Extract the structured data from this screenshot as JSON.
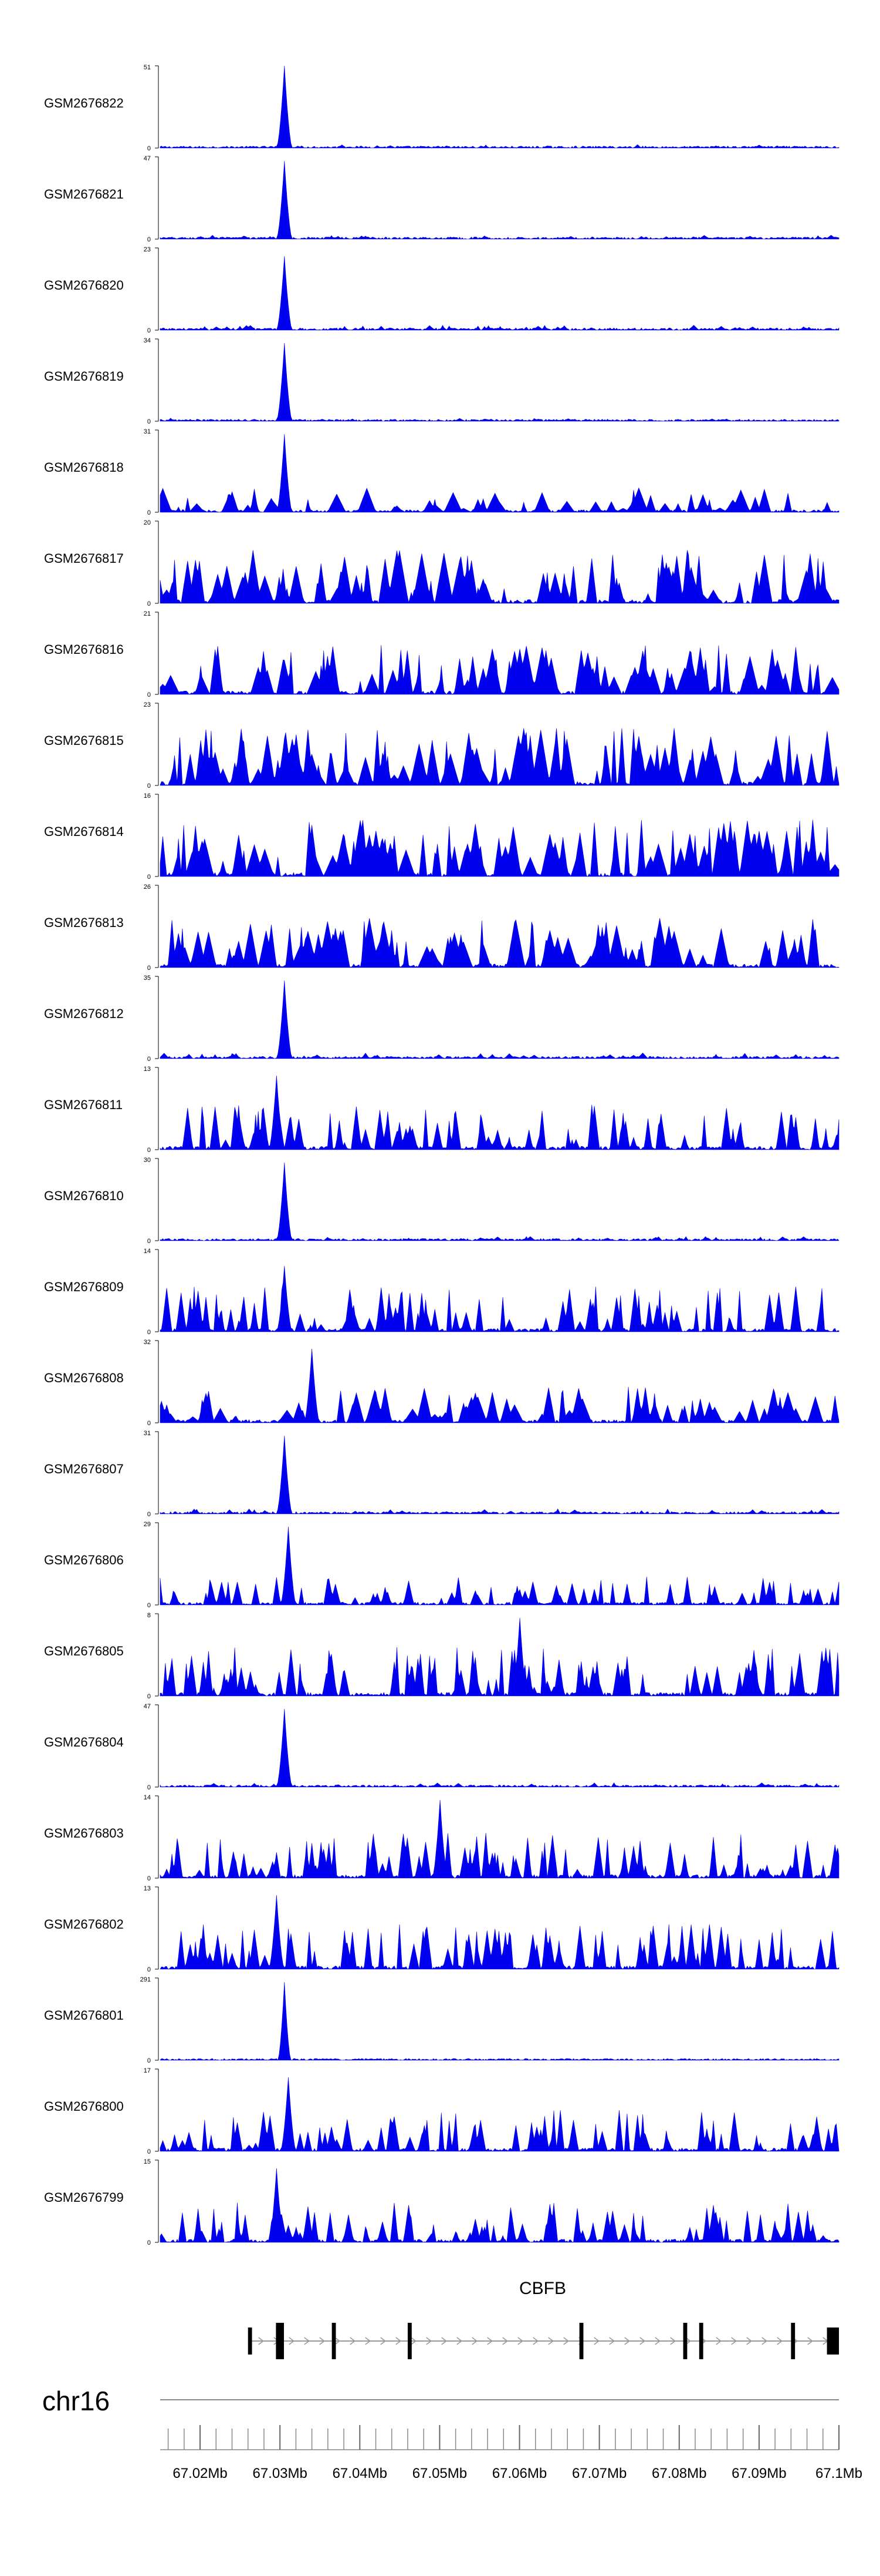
{
  "colors": {
    "track": "#0000ee",
    "axis": "#000000",
    "gene": "#000000",
    "strand": "#999999",
    "ruler": "#888888"
  },
  "chart_data": {
    "type": "area",
    "title": "",
    "genome": "chr16",
    "xrange": [
      67.015,
      67.1
    ],
    "tracks": [
      {
        "name": "GSM2676822",
        "ymax": 51,
        "ymin": 0,
        "peak": 67.0305,
        "peak_height": 1.0,
        "background": 0.12,
        "style": "peak"
      },
      {
        "name": "GSM2676821",
        "ymax": 47,
        "ymin": 0,
        "peak": 67.0305,
        "peak_height": 0.95,
        "background": 0.14,
        "style": "peak"
      },
      {
        "name": "GSM2676820",
        "ymax": 23,
        "ymin": 0,
        "peak": 67.0305,
        "peak_height": 0.9,
        "background": 0.18,
        "style": "peak"
      },
      {
        "name": "GSM2676819",
        "ymax": 34,
        "ymin": 0,
        "peak": 67.0305,
        "peak_height": 0.95,
        "background": 0.12,
        "style": "peak"
      },
      {
        "name": "GSM2676818",
        "ymax": 31,
        "ymin": 0,
        "peak": 67.0305,
        "peak_height": 0.95,
        "background": 0.3,
        "style": "spiky"
      },
      {
        "name": "GSM2676817",
        "ymax": 20,
        "ymin": 0,
        "peak": null,
        "peak_height": 0.0,
        "background": 0.65,
        "style": "spiky"
      },
      {
        "name": "GSM2676816",
        "ymax": 21,
        "ymin": 0,
        "peak": null,
        "peak_height": 0.0,
        "background": 0.6,
        "style": "spiky"
      },
      {
        "name": "GSM2676815",
        "ymax": 23,
        "ymin": 0,
        "peak": null,
        "peak_height": 0.0,
        "background": 0.7,
        "style": "spiky"
      },
      {
        "name": "GSM2676814",
        "ymax": 16,
        "ymin": 0,
        "peak": null,
        "peak_height": 0.0,
        "background": 0.7,
        "style": "spiky"
      },
      {
        "name": "GSM2676813",
        "ymax": 26,
        "ymin": 0,
        "peak": null,
        "peak_height": 0.0,
        "background": 0.6,
        "style": "spiky"
      },
      {
        "name": "GSM2676812",
        "ymax": 35,
        "ymin": 0,
        "peak": 67.0305,
        "peak_height": 0.95,
        "background": 0.2,
        "style": "peak"
      },
      {
        "name": "GSM2676811",
        "ymax": 13,
        "ymin": 0,
        "peak": 67.0295,
        "peak_height": 0.9,
        "background": 0.55,
        "style": "dense"
      },
      {
        "name": "GSM2676810",
        "ymax": 30,
        "ymin": 0,
        "peak": 67.0305,
        "peak_height": 0.95,
        "background": 0.15,
        "style": "peak"
      },
      {
        "name": "GSM2676809",
        "ymax": 14,
        "ymin": 0,
        "peak": 67.0305,
        "peak_height": 0.8,
        "background": 0.55,
        "style": "dense"
      },
      {
        "name": "GSM2676808",
        "ymax": 32,
        "ymin": 0,
        "peak": 67.034,
        "peak_height": 0.9,
        "background": 0.45,
        "style": "spiky"
      },
      {
        "name": "GSM2676807",
        "ymax": 31,
        "ymin": 0,
        "peak": 67.0305,
        "peak_height": 0.95,
        "background": 0.18,
        "style": "peak"
      },
      {
        "name": "GSM2676806",
        "ymax": 29,
        "ymin": 0,
        "peak": 67.031,
        "peak_height": 0.95,
        "background": 0.35,
        "style": "dense"
      },
      {
        "name": "GSM2676805",
        "ymax": 8,
        "ymin": 0,
        "peak": 67.06,
        "peak_height": 0.95,
        "background": 0.6,
        "style": "dense"
      },
      {
        "name": "GSM2676804",
        "ymax": 47,
        "ymin": 0,
        "peak": 67.0305,
        "peak_height": 0.95,
        "background": 0.15,
        "style": "peak"
      },
      {
        "name": "GSM2676803",
        "ymax": 14,
        "ymin": 0,
        "peak": 67.05,
        "peak_height": 0.95,
        "background": 0.55,
        "style": "dense"
      },
      {
        "name": "GSM2676802",
        "ymax": 13,
        "ymin": 0,
        "peak": 67.0295,
        "peak_height": 0.9,
        "background": 0.55,
        "style": "dense"
      },
      {
        "name": "GSM2676801",
        "ymax": 291,
        "ymin": 0,
        "peak": 67.0305,
        "peak_height": 0.95,
        "background": 0.01,
        "style": "single"
      },
      {
        "name": "GSM2676800",
        "ymax": 17,
        "ymin": 0,
        "peak": 67.031,
        "peak_height": 0.9,
        "background": 0.5,
        "style": "dense"
      },
      {
        "name": "GSM2676799",
        "ymax": 15,
        "ymin": 0,
        "peak": 67.0295,
        "peak_height": 0.9,
        "background": 0.5,
        "style": "dense"
      }
    ],
    "gene": {
      "name": "CBFB",
      "start": 67.026,
      "end": 67.1,
      "strand": "+",
      "exons": [
        {
          "start": 67.026,
          "end": 67.0265
        },
        {
          "start": 67.0295,
          "end": 67.0305
        },
        {
          "start": 67.0365,
          "end": 67.037
        },
        {
          "start": 67.046,
          "end": 67.0465
        },
        {
          "start": 67.0675,
          "end": 67.068
        },
        {
          "start": 67.0805,
          "end": 67.081
        },
        {
          "start": 67.0825,
          "end": 67.083
        },
        {
          "start": 67.094,
          "end": 67.0945
        },
        {
          "start": 67.0985,
          "end": 67.1
        }
      ]
    },
    "ruler": {
      "label": "chr16",
      "tick_step": 0.002,
      "labels": [
        "67.02Mb",
        "67.03Mb",
        "67.04Mb",
        "67.05Mb",
        "67.06Mb",
        "67.07Mb",
        "67.08Mb",
        "67.09Mb",
        "67.1Mb"
      ],
      "label_positions": [
        67.02,
        67.03,
        67.04,
        67.05,
        67.06,
        67.07,
        67.08,
        67.09,
        67.1
      ]
    }
  }
}
